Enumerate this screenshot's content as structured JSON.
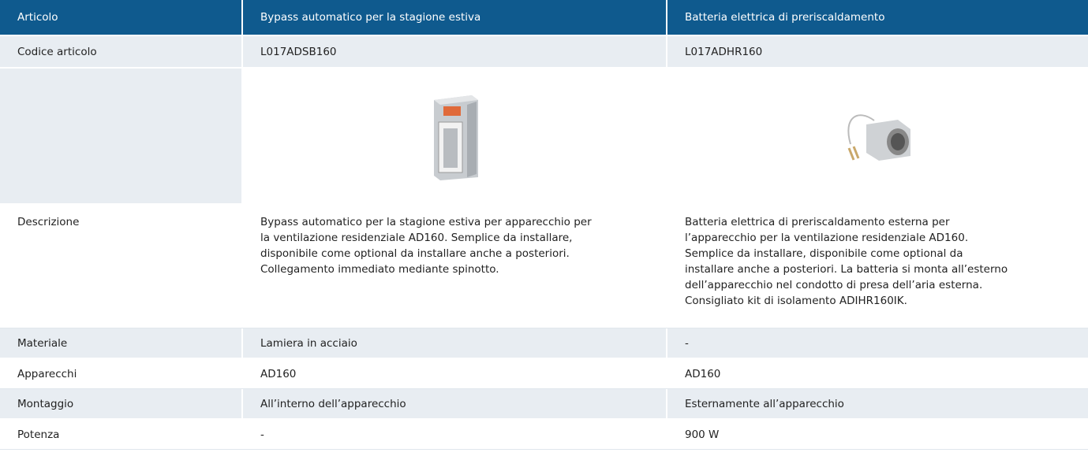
{
  "table": {
    "header": [
      "Articolo",
      "Bypass automatico per la stagione estiva",
      "Batteria elettrica di preriscaldamento"
    ],
    "rows": [
      [
        "Codice articolo",
        "L017ADSB160",
        "L017ADHR160"
      ],
      [],
      [
        "Descrizione",
        [
          "Bypass automatico per la stagione estiva per apparecchio per",
          "la ventilazione residenziale AD160. Semplice da installare,",
          "disponibile come optional da installare anche a posteriori.",
          "Collegamento immediato mediante spinotto."
        ],
        [
          "Batteria elettrica di preriscaldamento esterna per",
          "l’apparecchio per la ventilazione residenziale AD160.",
          "Semplice da installare, disponibile come optional da",
          "installare anche a posteriori. La batteria si monta all’esterno",
          "dell’apparecchio nel condotto di presa dell’aria esterna.",
          "Consigliato kit di isolamento ADIHR160IK."
        ]
      ],
      [
        "Materiale",
        "Lamiera in acciaio",
        "-"
      ],
      [
        "Apparecchi",
        "AD160",
        "AD160"
      ],
      [
        "Montaggio",
        "All’interno dell’apparecchio",
        "Esternamente all’apparecchio"
      ],
      [
        "Potenza",
        "-",
        "900 W"
      ]
    ]
  }
}
